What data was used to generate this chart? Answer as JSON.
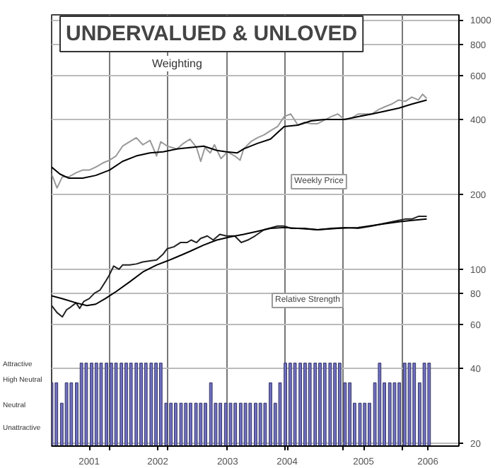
{
  "chart_data": {
    "type": "line",
    "title": "UNDERVALUED & UNLOVED",
    "subtitle": "Weighting",
    "log": "y",
    "grid": true,
    "xlim": [
      2000,
      2006.83
    ],
    "xticks": [
      {
        "value": 2000.63,
        "label": "2001"
      },
      {
        "value": 2001.78,
        "label": "2002"
      },
      {
        "value": 2002.95,
        "label": "2003"
      },
      {
        "value": 2003.95,
        "label": "2004"
      },
      {
        "value": 2005.23,
        "label": "2005"
      },
      {
        "value": 2006.31,
        "label": "2006"
      },
      {
        "value": 2000.97,
        "label": null
      },
      {
        "value": 2001.94,
        "label": null
      },
      {
        "value": 2002.93,
        "label": null
      },
      {
        "value": 2003.92,
        "label": null
      },
      {
        "value": 2004.89,
        "label": null
      },
      {
        "value": 2005.88,
        "label": null
      }
    ],
    "ylim": [
      19.5,
      1050
    ],
    "yticks": [
      20,
      40,
      60,
      80,
      100,
      200,
      400,
      600,
      800,
      1000
    ],
    "annotations": [
      "Weekly Price",
      "Relative Strength",
      "Attractive",
      "High Neutral",
      "Neutral",
      "Unattractive"
    ],
    "series": [
      {
        "color": "#999999",
        "x": [
          2000.0,
          2000.09,
          2000.18,
          2000.29,
          2000.41,
          2000.52,
          2000.63,
          2000.74,
          2000.86,
          2000.97,
          2001.08,
          2001.19,
          2001.31,
          2001.42,
          2001.53,
          2001.65,
          2001.76,
          2001.83,
          2001.94,
          2002.1,
          2002.21,
          2002.32,
          2002.43,
          2002.5,
          2002.57,
          2002.66,
          2002.73,
          2002.84,
          2002.95,
          2003.07,
          2003.16,
          2003.22,
          2003.34,
          2003.45,
          2003.56,
          2003.67,
          2003.79,
          2003.9,
          2004.01,
          2004.13,
          2004.24,
          2004.35,
          2004.46,
          2004.69,
          2004.8,
          2004.91,
          2005.03,
          2005.14,
          2005.25,
          2005.37,
          2005.48,
          2005.59,
          2005.7,
          2005.82,
          2005.93,
          2006.04,
          2006.15,
          2006.22,
          2006.29
        ],
        "values": [
          241,
          212,
          235,
          235,
          244,
          250,
          250,
          257,
          267,
          274,
          285,
          312,
          325,
          337,
          316,
          329,
          285,
          325,
          312,
          304,
          320,
          333,
          308,
          271,
          308,
          293,
          316,
          278,
          296,
          285,
          274,
          304,
          325,
          337,
          346,
          360,
          374,
          410,
          420,
          379,
          389,
          384,
          384,
          410,
          420,
          399,
          404,
          420,
          420,
          420,
          437,
          449,
          460,
          478,
          472,
          491,
          478,
          504,
          485
        ]
      },
      {
        "color": "#000000",
        "x": [
          2000.0,
          2000.14,
          2000.29,
          2000.52,
          2000.74,
          2000.97,
          2001.19,
          2001.42,
          2001.65,
          2001.87,
          2002.1,
          2002.32,
          2002.55,
          2002.77,
          2002.93,
          2003.11,
          2003.22,
          2003.45,
          2003.67,
          2003.9,
          2004.13,
          2004.35,
          2004.58,
          2004.91,
          2005.14,
          2005.37,
          2005.59,
          2005.82,
          2006.04,
          2006.29
        ],
        "values": [
          257,
          241,
          232,
          232,
          238,
          250,
          271,
          285,
          293,
          296,
          304,
          308,
          312,
          300,
          296,
          293,
          304,
          320,
          333,
          374,
          379,
          394,
          399,
          399,
          410,
          420,
          431,
          443,
          460,
          478
        ]
      },
      {
        "color": "#222222",
        "x": [
          2000.0,
          2000.09,
          2000.18,
          2000.25,
          2000.32,
          2000.41,
          2000.47,
          2000.54,
          2000.63,
          2000.72,
          2000.81,
          2000.9,
          2000.97,
          2001.04,
          2001.13,
          2001.19,
          2001.31,
          2001.42,
          2001.53,
          2001.65,
          2001.76,
          2001.87,
          2001.94,
          2002.05,
          2002.16,
          2002.27,
          2002.34,
          2002.43,
          2002.5,
          2002.61,
          2002.71,
          2002.82,
          2002.93,
          2003.07,
          2003.18,
          2003.29,
          2003.41,
          2003.56,
          2003.79,
          2003.9,
          2004.01,
          2004.24,
          2004.46,
          2004.69,
          2004.91,
          2005.14,
          2005.37,
          2005.59,
          2005.82,
          2005.93,
          2006.04,
          2006.15,
          2006.29
        ],
        "values": [
          71.5,
          67,
          64.4,
          68.7,
          70.5,
          73.3,
          69.6,
          74.3,
          76.2,
          80.2,
          82.4,
          89,
          95,
          103,
          100,
          104,
          104,
          105,
          107,
          108,
          109,
          115,
          121,
          123,
          128,
          128,
          131,
          128,
          133,
          136,
          131,
          138,
          136,
          136,
          128,
          131,
          136,
          144,
          149,
          149,
          146,
          146,
          144,
          146,
          147,
          146,
          149,
          153,
          157,
          159,
          159,
          163,
          163
        ]
      },
      {
        "color": "#000000",
        "x": [
          2000.0,
          2000.18,
          2000.41,
          2000.59,
          2000.74,
          2000.9,
          2001.08,
          2001.31,
          2001.53,
          2001.76,
          2001.94,
          2002.1,
          2002.32,
          2002.55,
          2002.77,
          2003.0,
          2003.22,
          2003.45,
          2003.67,
          2003.9,
          2004.13,
          2004.46,
          2004.8,
          2005.14,
          2005.48,
          2005.82,
          2006.04,
          2006.29
        ],
        "values": [
          78.2,
          76.2,
          73.3,
          71.5,
          72.4,
          76.2,
          81.3,
          89,
          97.5,
          104,
          108,
          112,
          118,
          125,
          131,
          135,
          138,
          142,
          146,
          147,
          146,
          144,
          146,
          147,
          151,
          155,
          157,
          159
        ]
      },
      {
        "type": "bar",
        "color": "#7070c0",
        "x": [
          2000.0,
          2000.08,
          2000.17,
          2000.25,
          2000.33,
          2000.42,
          2000.5,
          2000.58,
          2000.67,
          2000.75,
          2000.83,
          2000.92,
          2001.0,
          2001.08,
          2001.17,
          2001.25,
          2001.33,
          2001.42,
          2001.5,
          2001.58,
          2001.67,
          2001.75,
          2001.83,
          2001.92,
          2002.0,
          2002.08,
          2002.17,
          2002.25,
          2002.33,
          2002.42,
          2002.5,
          2002.58,
          2002.67,
          2002.75,
          2002.83,
          2002.92,
          2003.0,
          2003.08,
          2003.17,
          2003.25,
          2003.33,
          2003.42,
          2003.5,
          2003.58,
          2003.67,
          2003.75,
          2003.83,
          2003.92,
          2004.0,
          2004.08,
          2004.17,
          2004.25,
          2004.33,
          2004.42,
          2004.5,
          2004.58,
          2004.67,
          2004.75,
          2004.83,
          2004.92,
          2005.0,
          2005.08,
          2005.17,
          2005.25,
          2005.33,
          2005.42,
          2005.5,
          2005.58,
          2005.67,
          2005.75,
          2005.83,
          2005.92,
          2006.0,
          2006.08,
          2006.17,
          2006.25,
          2006.33
        ],
        "values": [
          35,
          35,
          29,
          35,
          35,
          35,
          42,
          42,
          42,
          42,
          42,
          42,
          42,
          42,
          42,
          42,
          42,
          42,
          42,
          42,
          42,
          42,
          42,
          29,
          29,
          29,
          29,
          29,
          29,
          29,
          29,
          29,
          35,
          29,
          29,
          29,
          29,
          29,
          29,
          29,
          29,
          29,
          29,
          29,
          35,
          29,
          35,
          42,
          42,
          42,
          42,
          42,
          42,
          42,
          42,
          42,
          42,
          42,
          42,
          35,
          35,
          29,
          29,
          29,
          29,
          35,
          42,
          35,
          35,
          35,
          35,
          42,
          42,
          42,
          35,
          42,
          42
        ]
      }
    ]
  }
}
